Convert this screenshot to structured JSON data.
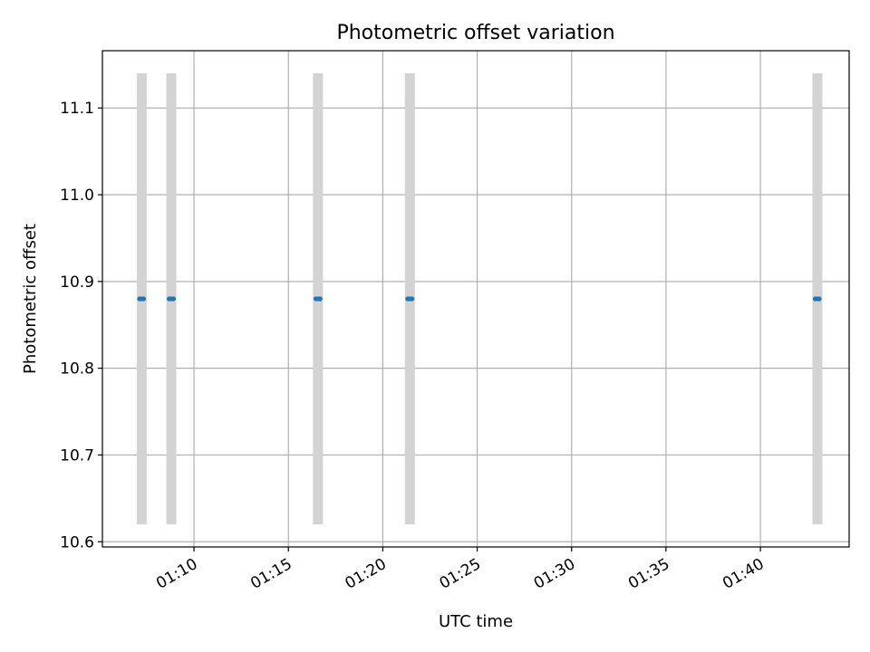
{
  "chart_data": {
    "type": "scatter",
    "title": "Photometric offset variation",
    "xlabel": "UTC time",
    "ylabel": "Photometric offset",
    "x_axis_kind": "time",
    "xlim": [
      "01:05:09",
      "01:44:42"
    ],
    "ylim": [
      10.594,
      11.166
    ],
    "x_ticks": [
      "01:10",
      "01:15",
      "01:20",
      "01:25",
      "01:30",
      "01:35",
      "01:40"
    ],
    "y_ticks": [
      10.6,
      10.7,
      10.8,
      10.9,
      11.0,
      11.1
    ],
    "grid": true,
    "points": [
      {
        "x": "01:07:07",
        "y": 10.88
      },
      {
        "x": "01:07:13",
        "y": 10.88
      },
      {
        "x": "01:07:20",
        "y": 10.88
      },
      {
        "x": "01:08:41",
        "y": 10.88
      },
      {
        "x": "01:08:48",
        "y": 10.88
      },
      {
        "x": "01:08:55",
        "y": 10.88
      },
      {
        "x": "01:16:27",
        "y": 10.88
      },
      {
        "x": "01:16:34",
        "y": 10.88
      },
      {
        "x": "01:16:41",
        "y": 10.88
      },
      {
        "x": "01:21:19",
        "y": 10.88
      },
      {
        "x": "01:21:26",
        "y": 10.88
      },
      {
        "x": "01:21:33",
        "y": 10.88
      },
      {
        "x": "01:42:54",
        "y": 10.88
      },
      {
        "x": "01:43:00",
        "y": 10.88
      },
      {
        "x": "01:43:07",
        "y": 10.88
      }
    ],
    "shaded_spans": [
      {
        "x": "01:07:14",
        "y": [
          10.62,
          11.14
        ]
      },
      {
        "x": "01:08:48",
        "y": [
          10.62,
          11.14
        ]
      },
      {
        "x": "01:16:34",
        "y": [
          10.62,
          11.14
        ]
      },
      {
        "x": "01:21:26",
        "y": [
          10.62,
          11.14
        ]
      },
      {
        "x": "01:43:01",
        "y": [
          10.62,
          11.14
        ]
      }
    ],
    "colors": {
      "points": "#1f77b4",
      "spans": "#d3d3d3",
      "grid": "#b0b0b0",
      "axes": "#000000"
    }
  }
}
